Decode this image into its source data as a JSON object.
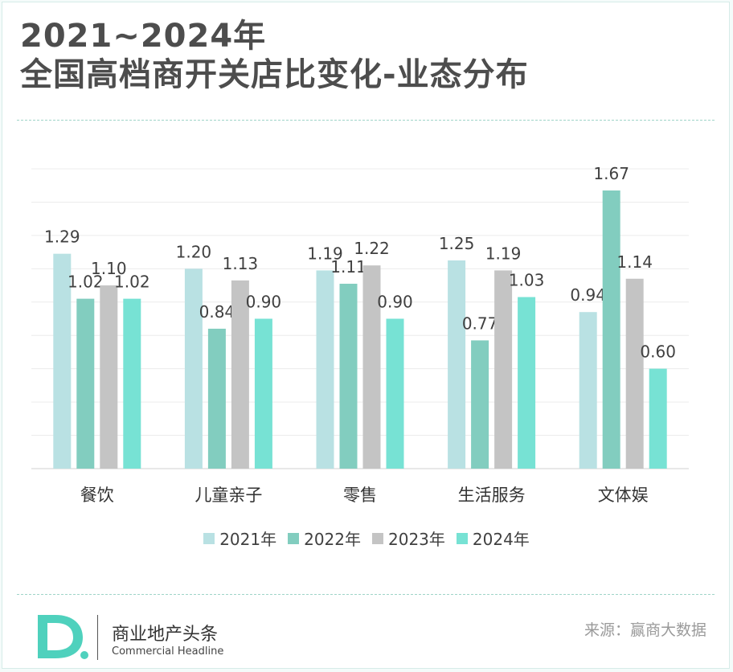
{
  "header": {
    "title_line1": "2021~2024年",
    "title_line2": "全国高档商开关店比变化-业态分布"
  },
  "chart_data": {
    "type": "bar",
    "title": "2021~2024年 全国高档商开关店比变化-业态分布",
    "categories": [
      "餐饮",
      "儿童亲子",
      "零售",
      "生活服务",
      "文体娱"
    ],
    "series": [
      {
        "name": "2021年",
        "values": [
          1.29,
          1.2,
          1.19,
          1.25,
          0.94
        ],
        "color": "#b9e1e3"
      },
      {
        "name": "2022年",
        "values": [
          1.02,
          0.84,
          1.11,
          0.77,
          1.67
        ],
        "color": "#82cdbf"
      },
      {
        "name": "2023年",
        "values": [
          1.1,
          1.13,
          1.22,
          1.19,
          1.14
        ],
        "color": "#c4c4c4"
      },
      {
        "name": "2024年",
        "values": [
          1.02,
          0.9,
          0.9,
          1.03,
          0.6
        ],
        "color": "#77e2d4"
      }
    ],
    "ylim": [
      0,
      1.8
    ],
    "grid": true,
    "legend": "bottom",
    "xlabel": "",
    "ylabel": ""
  },
  "footer": {
    "logo_letter": "D.",
    "brand_cn": "商业地产头条",
    "brand_en": "Commercial Headline",
    "source": "来源：赢商大数据"
  }
}
